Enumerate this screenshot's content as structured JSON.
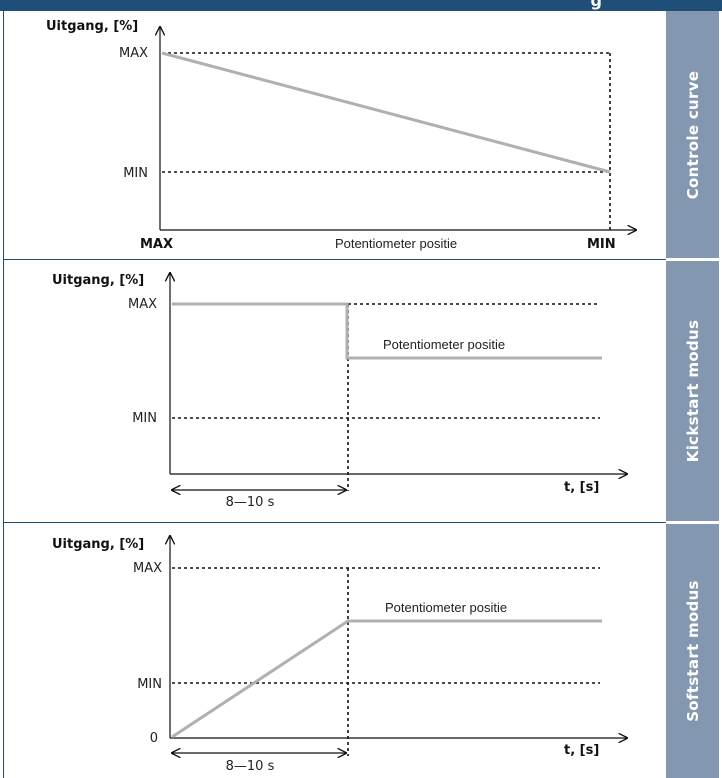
{
  "header": {
    "title_fragment": "g"
  },
  "panels": [
    {
      "side_label": "Controle curve",
      "y_axis_label": "Uitgang, [%]",
      "y_levels": [
        "MAX",
        "MIN"
      ],
      "x_start_label": "MAX",
      "x_end_label": "MIN",
      "x_axis_label": "Potentiometer positie"
    },
    {
      "side_label": "Kickstart modus",
      "y_axis_label": "Uitgang, [%]",
      "y_levels": [
        "MAX",
        "MIN"
      ],
      "x_axis_label": "t, [s]",
      "interval_label": "8—10 s",
      "curve_label": "Potentiometer positie"
    },
    {
      "side_label": "Softstart modus",
      "y_axis_label": "Uitgang, [%]",
      "y_levels": [
        "MAX",
        "MIN",
        "0"
      ],
      "x_axis_label": "t, [s]",
      "interval_label": "8—10 s",
      "curve_label": "Potentiometer positie"
    }
  ],
  "colors": {
    "header": "#1f4e79",
    "side_bar": "#8497b0",
    "curve": "#b0b0b0",
    "axis": "#111111"
  }
}
